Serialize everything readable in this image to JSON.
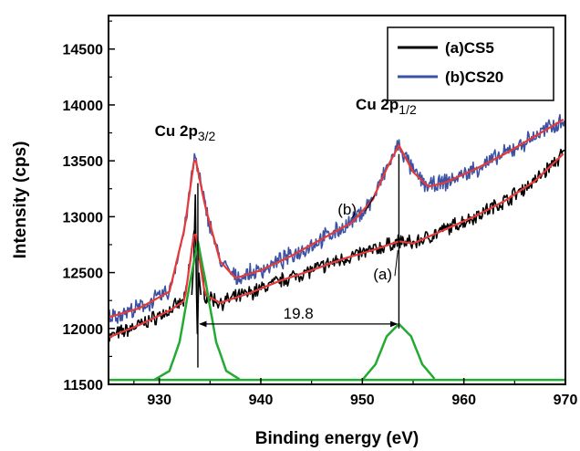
{
  "chart_data": {
    "type": "line",
    "xlabel": "Binding energy (eV)",
    "ylabel": "Intensity (cps)",
    "xlim": [
      925,
      970
    ],
    "ylim": [
      11500,
      14800
    ],
    "x_ticks": [
      "930",
      "940",
      "950",
      "960",
      "970"
    ],
    "y_ticks": [
      "11500",
      "12000",
      "12500",
      "13000",
      "13500",
      "14000",
      "14500"
    ],
    "legend_position": "top-right",
    "series": [
      {
        "name": "(a)CS5",
        "color": "#000000",
        "x": [
          925,
          928,
          931,
          932.5,
          933.5,
          934.5,
          936,
          939,
          942,
          945,
          948,
          951,
          953.6,
          955,
          958,
          961,
          964,
          967,
          970
        ],
        "y": [
          11920,
          12030,
          12160,
          12250,
          12900,
          12300,
          12230,
          12320,
          12430,
          12520,
          12620,
          12700,
          12780,
          12760,
          12880,
          13000,
          13140,
          13320,
          13580
        ]
      },
      {
        "name": "(b)CS20",
        "color": "#3b52a3",
        "x": [
          925,
          928,
          931,
          932.5,
          933.5,
          934.5,
          936,
          937.5,
          940,
          943,
          946,
          949,
          951,
          952.5,
          953.6,
          955,
          956.5,
          958,
          961,
          964,
          967,
          970
        ],
        "y": [
          12100,
          12180,
          12330,
          12900,
          13550,
          13100,
          12600,
          12450,
          12520,
          12650,
          12800,
          12950,
          13150,
          13450,
          13640,
          13400,
          13270,
          13300,
          13420,
          13560,
          13720,
          13880
        ]
      },
      {
        "name": "Cu 2p3/2 component",
        "color": "#22aa33",
        "x": [
          929.5,
          931,
          932,
          933,
          933.8,
          934.6,
          935.6,
          936.6,
          938
        ],
        "y": [
          11540,
          11620,
          11880,
          12400,
          12780,
          12400,
          11880,
          11620,
          11540
        ]
      },
      {
        "name": "Cu 2p1/2 component",
        "color": "#22aa33",
        "x": [
          950,
          951.3,
          952.4,
          953.6,
          954.8,
          955.9,
          957.2
        ],
        "y": [
          11540,
          11680,
          11930,
          12040,
          11930,
          11680,
          11540
        ]
      }
    ],
    "fit_color": "#e63a3a",
    "green_baseline": 11540,
    "annotations": [
      {
        "label": "Cu 2p",
        "sub": "3/2",
        "x": 933.8
      },
      {
        "label": "Cu 2p",
        "sub": "1/2",
        "x": 953.6
      },
      {
        "label": "(b)",
        "x": 948.5,
        "y": 13020
      },
      {
        "label": "(a)",
        "x": 952,
        "y": 12440
      },
      {
        "label": "19.8",
        "x": 943.7,
        "y": 12040
      }
    ],
    "splitting_eV": 19.8
  }
}
